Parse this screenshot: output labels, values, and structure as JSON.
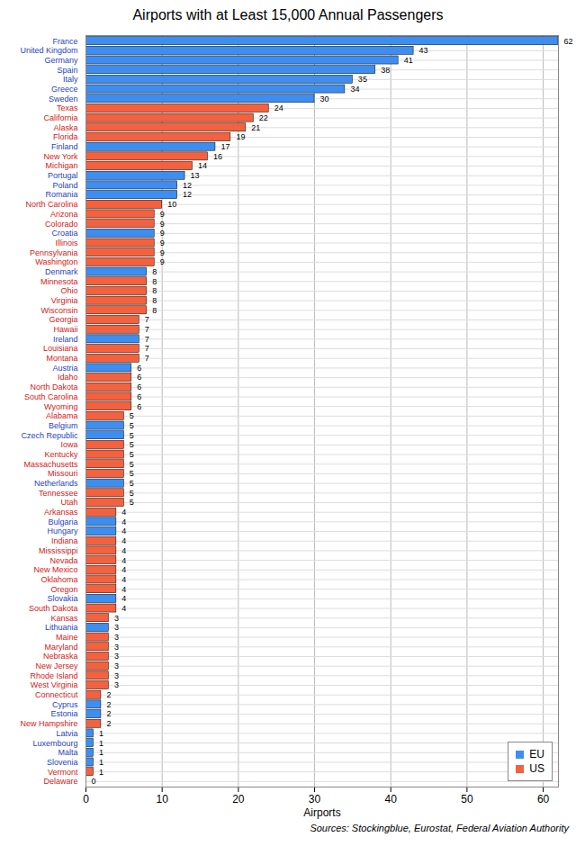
{
  "chart_data": {
    "type": "bar",
    "orientation": "horizontal",
    "title": "Airports with at Least 15,000 Annual Passengers",
    "x_label": "Airports",
    "caption": "Sources: Stockingblue, Eurostat, Federal Aviation Authority",
    "categories": [
      "France",
      "United Kingdom",
      "Germany",
      "Spain",
      "Italy",
      "Greece",
      "Sweden",
      "Texas",
      "California",
      "Alaska",
      "Florida",
      "Finland",
      "New York",
      "Michigan",
      "Portugal",
      "Poland",
      "Romania",
      "North Carolina",
      "Arizona",
      "Colorado",
      "Croatia",
      "Illinois",
      "Pennsylvania",
      "Washington",
      "Denmark",
      "Minnesota",
      "Ohio",
      "Virginia",
      "Wisconsin",
      "Georgia",
      "Hawaii",
      "Ireland",
      "Louisiana",
      "Montana",
      "Austria",
      "Idaho",
      "North Dakota",
      "South Carolina",
      "Wyoming",
      "Alabama",
      "Belgium",
      "Czech Republic",
      "Iowa",
      "Kentucky",
      "Massachusetts",
      "Missouri",
      "Netherlands",
      "Tennessee",
      "Utah",
      "Arkansas",
      "Bulgaria",
      "Hungary",
      "Indiana",
      "Mississippi",
      "Nevada",
      "New Mexico",
      "Oklahoma",
      "Oregon",
      "Slovakia",
      "South Dakota",
      "Kansas",
      "Lithuania",
      "Maine",
      "Maryland",
      "Nebraska",
      "New Jersey",
      "Rhode Island",
      "West Virginia",
      "Connecticut",
      "Cyprus",
      "Estonia",
      "New Hampshire",
      "Latvia",
      "Luxembourg",
      "Malta",
      "Slovenia",
      "Vermont",
      "Delaware"
    ],
    "series": [
      {
        "name": "EU",
        "color": "#3d8ef0",
        "values": [
          62,
          43,
          41,
          38,
          35,
          34,
          30,
          null,
          null,
          null,
          null,
          17,
          null,
          null,
          13,
          12,
          12,
          null,
          null,
          null,
          9,
          null,
          null,
          null,
          8,
          null,
          null,
          null,
          null,
          null,
          null,
          7,
          null,
          null,
          6,
          null,
          null,
          null,
          null,
          null,
          5,
          5,
          null,
          null,
          null,
          null,
          5,
          null,
          null,
          null,
          4,
          4,
          null,
          null,
          null,
          null,
          null,
          null,
          4,
          null,
          null,
          3,
          null,
          null,
          null,
          null,
          null,
          null,
          null,
          2,
          2,
          null,
          1,
          1,
          1,
          1,
          null,
          null
        ]
      },
      {
        "name": "US",
        "color": "#f4613f",
        "values": [
          null,
          null,
          null,
          null,
          null,
          null,
          null,
          24,
          22,
          21,
          19,
          null,
          16,
          14,
          null,
          null,
          null,
          10,
          9,
          9,
          null,
          9,
          9,
          9,
          null,
          8,
          8,
          8,
          8,
          7,
          7,
          null,
          7,
          7,
          null,
          6,
          6,
          6,
          6,
          5,
          null,
          null,
          5,
          5,
          5,
          5,
          null,
          5,
          5,
          4,
          null,
          null,
          4,
          4,
          4,
          4,
          4,
          4,
          null,
          4,
          3,
          null,
          3,
          3,
          3,
          3,
          3,
          3,
          2,
          null,
          null,
          2,
          null,
          null,
          null,
          null,
          1,
          0
        ]
      }
    ],
    "xlim": [
      0,
      62
    ],
    "xticks": [
      0,
      10,
      20,
      30,
      40,
      50,
      60
    ],
    "grid": true,
    "data_labels": true,
    "legend": "bottom-right"
  }
}
